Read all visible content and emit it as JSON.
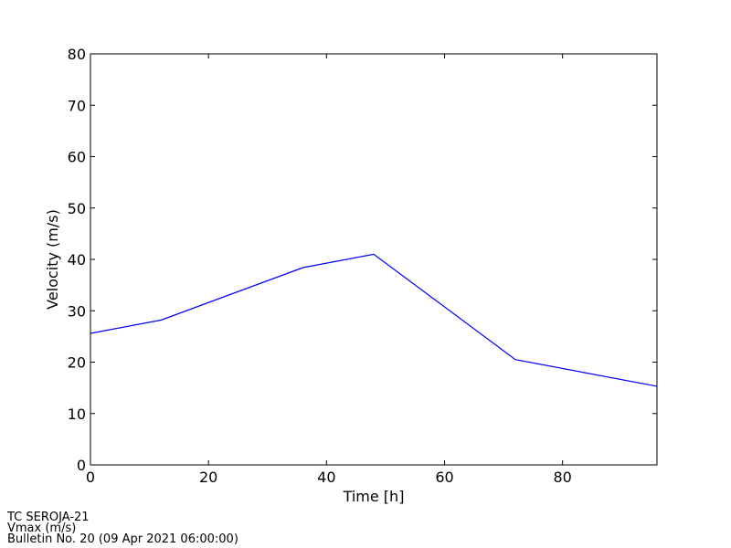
{
  "chart_data": {
    "type": "line",
    "x_label": "Time [h]",
    "y_label": "Velocity (m/s)",
    "x": [
      0,
      12,
      36,
      48,
      72,
      96
    ],
    "series": [
      {
        "name": "Vmax",
        "color": "#0000ff",
        "values": [
          25.6,
          28.2,
          38.4,
          41.0,
          20.5,
          15.3
        ]
      }
    ],
    "xlim": [
      0,
      96
    ],
    "xticks": [
      0,
      20,
      40,
      60,
      80
    ],
    "ylim": [
      0,
      80
    ],
    "yticks": [
      0,
      10,
      20,
      30,
      40,
      50,
      60,
      70,
      80
    ],
    "grid": false,
    "footer": [
      "TC SEROJA-21",
      "Vmax (m/s)",
      "Bulletin No. 20 (09 Apr 2021  06:00:00)"
    ]
  }
}
